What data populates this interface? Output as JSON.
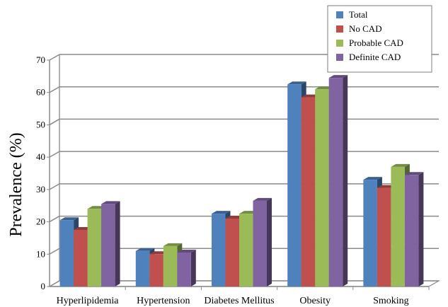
{
  "chart_data": {
    "type": "bar",
    "title": "",
    "xlabel": "",
    "ylabel": "Prevalence (%)",
    "ylim": [
      0,
      70
    ],
    "yticks": [
      0,
      10,
      20,
      30,
      40,
      50,
      60,
      70
    ],
    "grid": true,
    "legend_position": "top-right",
    "categories": [
      "Hyperlipidemia",
      "Hypertension",
      "Diabetes Mellitus",
      "Obesity",
      "Smoking"
    ],
    "series": [
      {
        "name": "Total",
        "color": "#4F81BD",
        "values": [
          20.5,
          11.0,
          22.5,
          62.5,
          33.0
        ]
      },
      {
        "name": "No CAD",
        "color": "#C0504D",
        "values": [
          17.5,
          10.0,
          21.0,
          58.5,
          30.5
        ]
      },
      {
        "name": "Probable CAD",
        "color": "#9BBB59",
        "values": [
          24.0,
          12.5,
          22.5,
          61.0,
          37.0
        ]
      },
      {
        "name": "Definite CAD",
        "color": "#8064A2",
        "values": [
          25.5,
          10.5,
          26.5,
          64.5,
          34.5
        ]
      }
    ]
  }
}
